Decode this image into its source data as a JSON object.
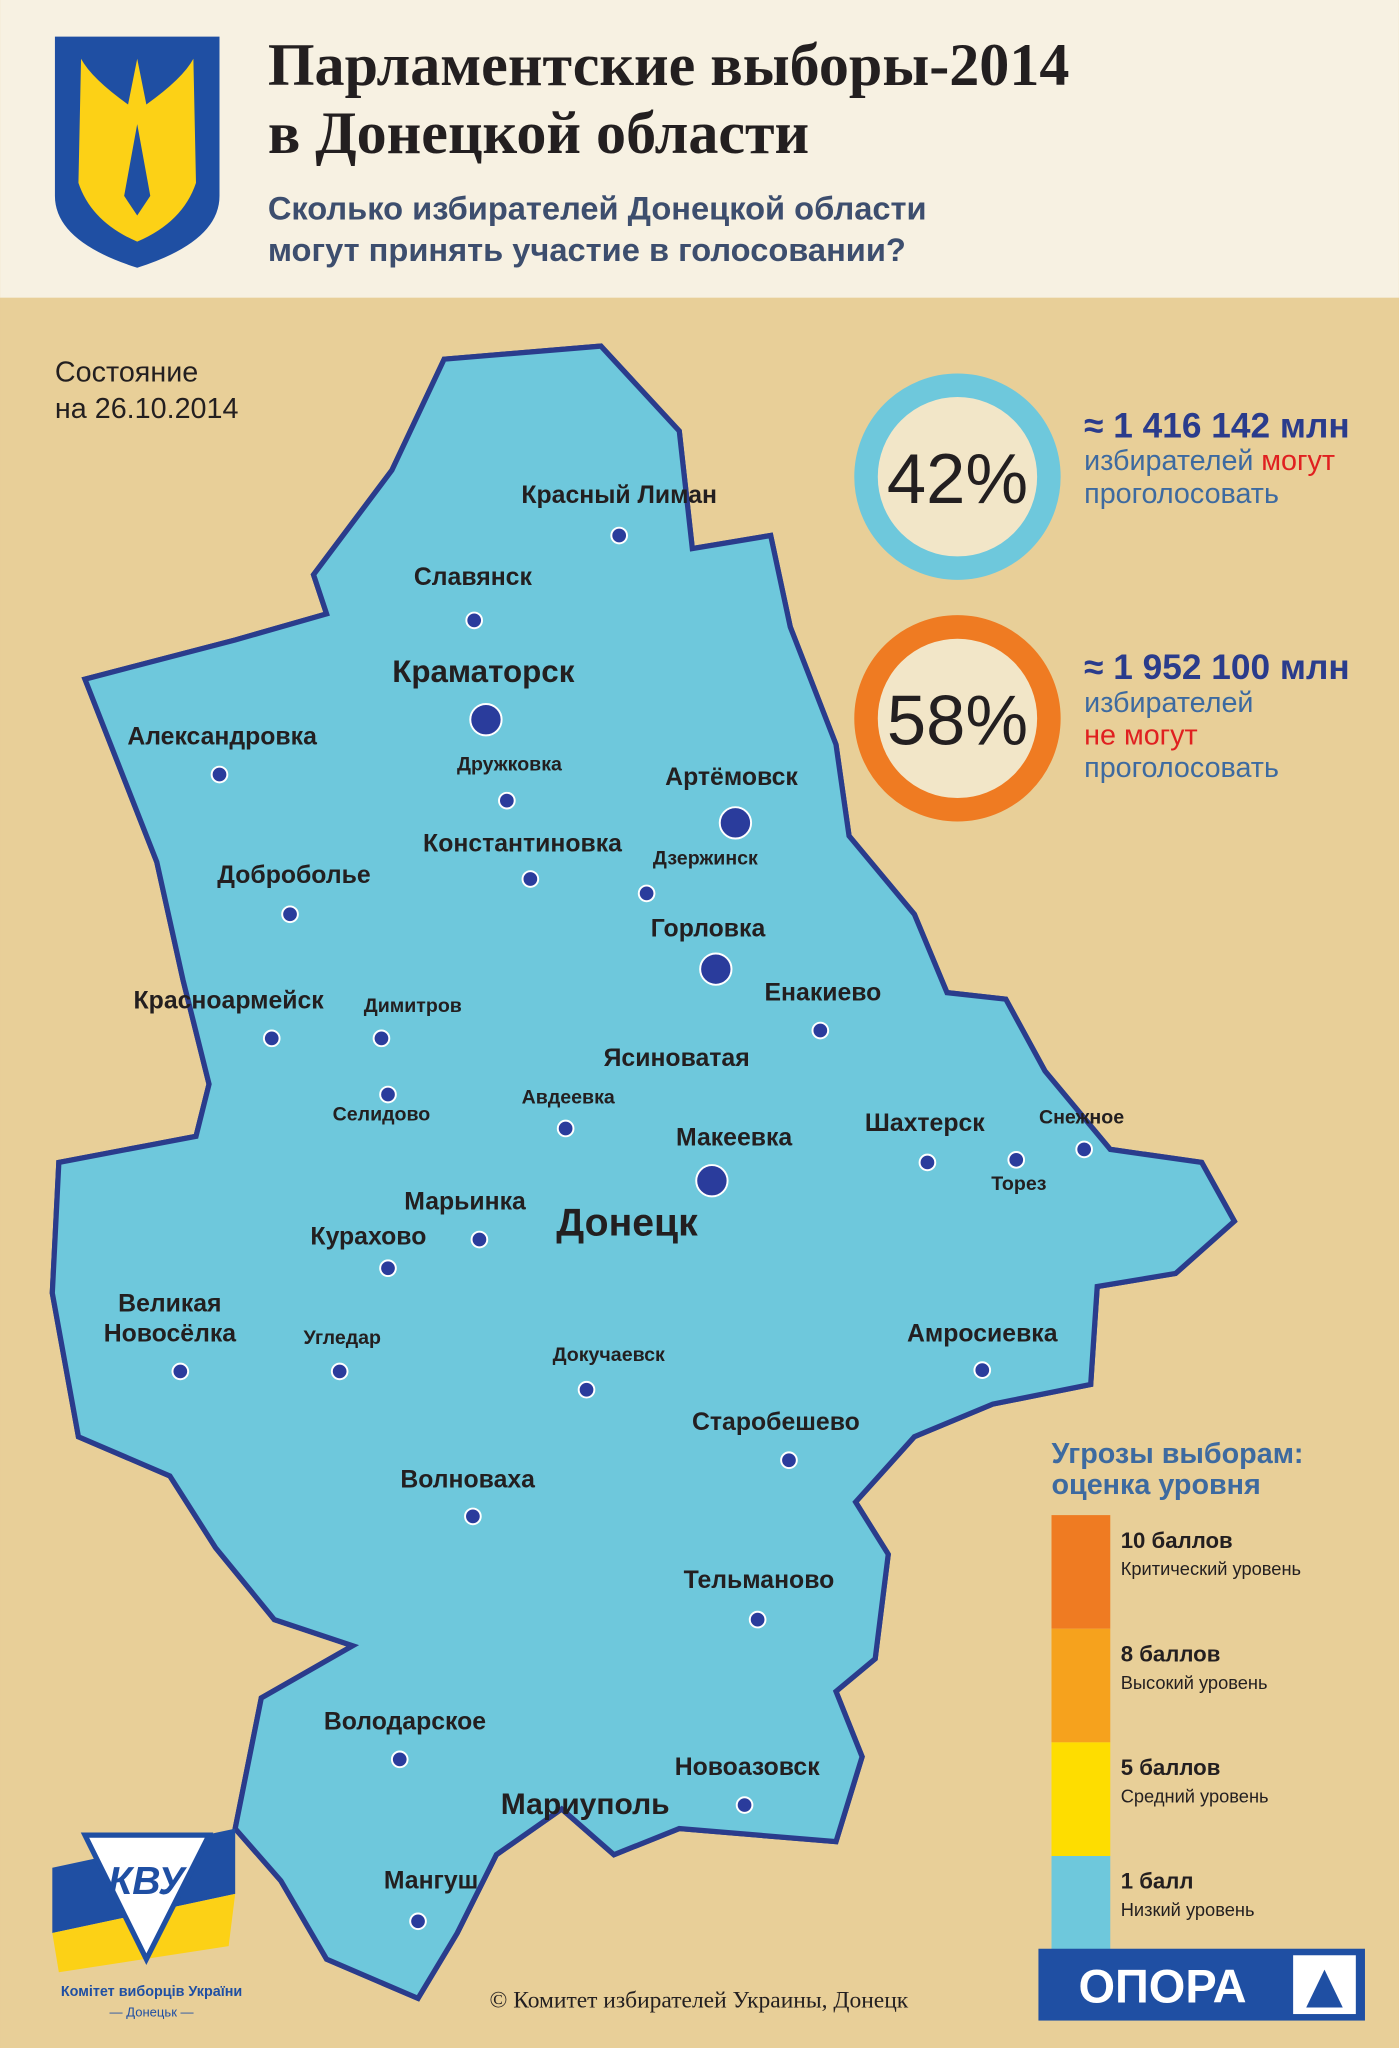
{
  "header": {
    "title_lines": [
      "Парламентские выборы-2014",
      "в Донецкой области"
    ],
    "subtitle_lines": [
      "Сколько избирателей Донецкой области",
      "могут принять участие в голосовании?"
    ]
  },
  "status": {
    "lines": [
      "Состояние",
      "на 26.10.2014"
    ]
  },
  "stats": [
    {
      "percent": "42%",
      "value": "≈ 1 416 142 млн",
      "line1": "избирателей",
      "highlight": "могут",
      "line2": "проголосовать",
      "color": "#6ec8dc"
    },
    {
      "percent": "58%",
      "value": "≈ 1 952 100 млн",
      "line1": "избирателей",
      "highlight": "не могут",
      "line2": "проголосовать",
      "color": "#ef7b22"
    }
  ],
  "cities": [
    {
      "name": "Красный Лиман"
    },
    {
      "name": "Славянск"
    },
    {
      "name": "Краматорск"
    },
    {
      "name": "Дружковка"
    },
    {
      "name": "Александровка"
    },
    {
      "name": "Артёмовск"
    },
    {
      "name": "Константиновка"
    },
    {
      "name": "Дзержинск"
    },
    {
      "name": "Доброболье"
    },
    {
      "name": "Горловка"
    },
    {
      "name": "Енакиево"
    },
    {
      "name": "Красноармейск"
    },
    {
      "name": "Димитров"
    },
    {
      "name": "Ясиноватая"
    },
    {
      "name": "Авдеевка"
    },
    {
      "name": "Селидово"
    },
    {
      "name": "Шахтерск"
    },
    {
      "name": "Снежное"
    },
    {
      "name": "Торез"
    },
    {
      "name": "Макеевка"
    },
    {
      "name": "Марьинка"
    },
    {
      "name": "Донецк"
    },
    {
      "name": "Курахово"
    },
    {
      "name": "Великая Новосёлка"
    },
    {
      "name": "Угледар"
    },
    {
      "name": "Докучаевск"
    },
    {
      "name": "Амросиевка"
    },
    {
      "name": "Старобешево"
    },
    {
      "name": "Волноваха"
    },
    {
      "name": "Тельманово"
    },
    {
      "name": "Володарское"
    },
    {
      "name": "Новоазовск"
    },
    {
      "name": "Мариуполь"
    },
    {
      "name": "Мангуш"
    }
  ],
  "legend": {
    "title_lines": [
      "Угрозы выборам:",
      "оценка уровня"
    ],
    "items": [
      {
        "score": "10 баллов",
        "level": "Критический уровень",
        "color": "#ef7b22"
      },
      {
        "score": "8 баллов",
        "level": "Высокий уровень",
        "color": "#f6a21d"
      },
      {
        "score": "5 баллов",
        "level": "Средний уровень",
        "color": "#fedd00"
      },
      {
        "score": "1 балл",
        "level": "Низкий уровень",
        "color": "#6ec8dc"
      }
    ]
  },
  "logos": {
    "kvu": "КВУ",
    "kvu_name": "Комітет виборців України",
    "kvu_city": "— Донецьк —",
    "opora": "ОПОРА"
  },
  "copyright": "© Комитет избирателей Украины, Донецк"
}
